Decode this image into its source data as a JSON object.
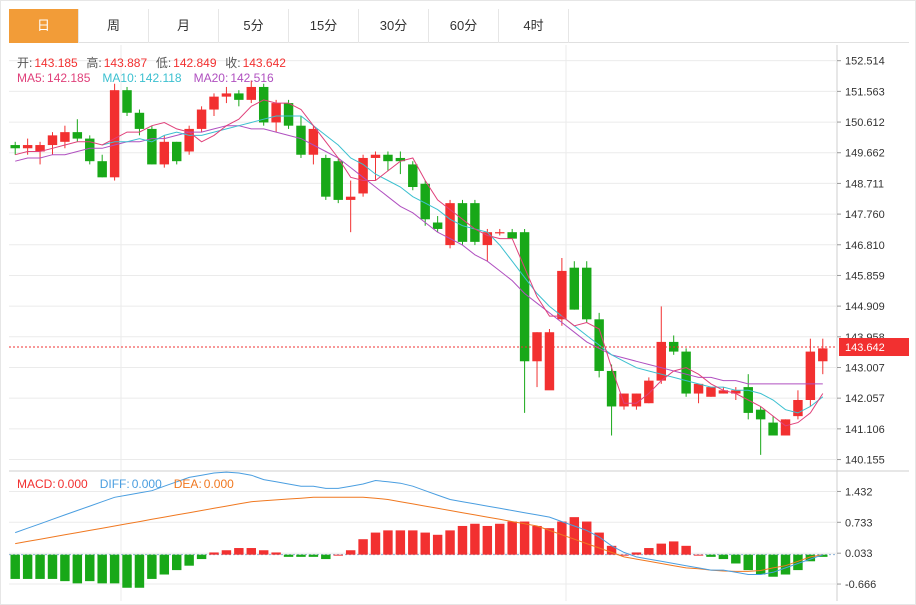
{
  "tabs": [
    "日",
    "周",
    "月",
    "5分",
    "15分",
    "30分",
    "60分",
    "4时"
  ],
  "active_tab": 0,
  "ohlc_legend": {
    "open_label": "开:",
    "open": "143.185",
    "high_label": "高:",
    "high": "143.887",
    "low_label": "低:",
    "low": "142.849",
    "close_label": "收:",
    "close": "143.642"
  },
  "ma_legend": {
    "ma5_label": "MA5:",
    "ma5": "142.185",
    "ma10_label": "MA10:",
    "ma10": "142.118",
    "ma20_label": "MA20:",
    "ma20": "142.516"
  },
  "macd_legend": {
    "macd_label": "MACD:",
    "macd": "0.000",
    "diff_label": "DIFF:",
    "diff": "0.000",
    "dea_label": "DEA:",
    "dea": "0.000"
  },
  "price_badge": "143.642",
  "colors": {
    "up": "#f23030",
    "down": "#18a818",
    "ma5": "#e0407a",
    "ma10": "#3cc0d0",
    "ma20": "#b050c0",
    "diff": "#4a9ee0",
    "dea": "#f07820",
    "tab_active": "#f29c38",
    "grid": "#ebebeb"
  },
  "chart_data": [
    {
      "type": "candlestick",
      "ylim": [
        139.8,
        153.0
      ],
      "y_ticks": [
        "152.514",
        "151.563",
        "150.612",
        "149.662",
        "148.711",
        "147.760",
        "146.810",
        "145.859",
        "144.909",
        "143.958",
        "143.007",
        "142.057",
        "141.106",
        "140.155"
      ],
      "y_tick_values": [
        152.514,
        151.563,
        150.612,
        149.662,
        148.711,
        147.76,
        146.81,
        145.859,
        144.909,
        143.958,
        143.007,
        142.057,
        141.106,
        140.155
      ],
      "last_price": 143.642,
      "ohlc": [
        [
          149.9,
          150.0,
          149.6,
          149.8
        ],
        [
          149.8,
          150.1,
          149.6,
          149.9
        ],
        [
          149.7,
          150.0,
          149.3,
          149.9
        ],
        [
          149.9,
          150.3,
          149.6,
          150.2
        ],
        [
          150.0,
          150.5,
          149.8,
          150.3
        ],
        [
          150.3,
          150.7,
          150.0,
          150.1
        ],
        [
          150.1,
          150.2,
          149.3,
          149.4
        ],
        [
          149.4,
          149.6,
          148.9,
          148.9
        ],
        [
          148.9,
          151.8,
          148.8,
          151.6
        ],
        [
          151.6,
          151.7,
          150.8,
          150.9
        ],
        [
          150.9,
          151.0,
          150.2,
          150.4
        ],
        [
          150.4,
          150.5,
          149.3,
          149.3
        ],
        [
          149.3,
          150.2,
          149.2,
          150.0
        ],
        [
          150.0,
          150.0,
          149.3,
          149.4
        ],
        [
          149.7,
          150.5,
          149.6,
          150.4
        ],
        [
          150.4,
          151.1,
          150.3,
          151.0
        ],
        [
          151.0,
          151.5,
          150.8,
          151.4
        ],
        [
          151.4,
          151.7,
          151.2,
          151.5
        ],
        [
          151.5,
          151.6,
          151.1,
          151.3
        ],
        [
          151.3,
          151.9,
          151.2,
          151.7
        ],
        [
          151.7,
          151.8,
          150.5,
          150.6
        ],
        [
          150.6,
          151.3,
          150.3,
          151.2
        ],
        [
          151.2,
          151.3,
          150.4,
          150.5
        ],
        [
          150.5,
          150.8,
          149.5,
          149.6
        ],
        [
          149.6,
          150.5,
          149.3,
          150.4
        ],
        [
          149.5,
          149.6,
          148.2,
          148.3
        ],
        [
          149.4,
          149.5,
          148.1,
          148.2
        ],
        [
          148.2,
          148.8,
          147.2,
          148.3
        ],
        [
          148.4,
          149.6,
          148.3,
          149.5
        ],
        [
          149.5,
          149.7,
          148.8,
          149.6
        ],
        [
          149.6,
          149.7,
          149.1,
          149.4
        ],
        [
          149.5,
          149.7,
          149.0,
          149.4
        ],
        [
          149.3,
          149.4,
          148.5,
          148.6
        ],
        [
          148.7,
          148.8,
          147.4,
          147.6
        ],
        [
          147.5,
          147.7,
          147.2,
          147.3
        ],
        [
          146.8,
          148.2,
          146.7,
          148.1
        ],
        [
          148.1,
          148.2,
          146.8,
          146.9
        ],
        [
          148.1,
          148.2,
          146.8,
          146.9
        ],
        [
          146.8,
          147.3,
          146.3,
          147.2
        ],
        [
          147.2,
          147.3,
          147.1,
          147.2
        ],
        [
          147.2,
          147.3,
          147.0,
          147.0
        ],
        [
          147.2,
          147.3,
          141.6,
          143.2
        ],
        [
          143.2,
          144.1,
          142.4,
          144.1
        ],
        [
          142.3,
          144.2,
          142.4,
          144.1
        ],
        [
          144.5,
          146.4,
          144.3,
          146.0
        ],
        [
          146.1,
          146.3,
          144.8,
          144.8
        ],
        [
          146.1,
          146.3,
          144.4,
          144.5
        ],
        [
          144.5,
          144.7,
          142.7,
          142.9
        ],
        [
          142.9,
          143.1,
          140.9,
          141.8
        ],
        [
          141.8,
          142.2,
          141.7,
          142.2
        ],
        [
          141.8,
          142.2,
          141.7,
          142.2
        ],
        [
          141.9,
          142.7,
          141.9,
          142.6
        ],
        [
          142.6,
          144.9,
          142.5,
          143.8
        ],
        [
          143.8,
          144.0,
          143.4,
          143.5
        ],
        [
          143.5,
          143.6,
          142.1,
          142.2
        ],
        [
          142.2,
          142.5,
          141.9,
          142.5
        ],
        [
          142.1,
          142.4,
          142.1,
          142.4
        ],
        [
          142.2,
          142.4,
          142.2,
          142.3
        ],
        [
          142.2,
          142.4,
          142.0,
          142.3
        ],
        [
          142.4,
          142.8,
          141.4,
          141.6
        ],
        [
          141.7,
          141.8,
          140.3,
          141.4
        ],
        [
          141.3,
          141.5,
          140.9,
          140.9
        ],
        [
          140.9,
          141.4,
          140.9,
          141.4
        ],
        [
          141.5,
          142.3,
          141.4,
          142.0
        ],
        [
          142.0,
          143.9,
          141.8,
          143.5
        ],
        [
          143.2,
          143.9,
          142.8,
          143.6
        ]
      ],
      "ma5": [
        149.6,
        149.7,
        149.7,
        149.8,
        149.9,
        150.0,
        150.0,
        149.9,
        150.1,
        150.3,
        150.3,
        150.5,
        150.6,
        150.4,
        150.3,
        150.0,
        150.2,
        150.5,
        150.7,
        151.1,
        151.3,
        151.2,
        151.2,
        151.0,
        150.5,
        150.0,
        149.5,
        148.9,
        148.8,
        148.8,
        149.1,
        149.4,
        149.5,
        148.8,
        148.2,
        147.9,
        147.6,
        147.3,
        147.1,
        147.0,
        147.0,
        146.1,
        145.2,
        144.6,
        144.6,
        144.3,
        144.4,
        144.2,
        143.0,
        141.9,
        141.9,
        142.2,
        142.6,
        142.9,
        143.0,
        142.8,
        142.5,
        142.3,
        142.2,
        142.0,
        141.8,
        141.5,
        141.2,
        141.3,
        141.6,
        142.2
      ],
      "ma10": [
        null,
        null,
        null,
        null,
        null,
        null,
        null,
        149.9,
        150.0,
        150.0,
        150.1,
        150.0,
        150.2,
        150.3,
        150.2,
        150.2,
        150.3,
        150.4,
        150.5,
        150.6,
        150.7,
        150.8,
        150.8,
        150.8,
        150.5,
        150.2,
        149.9,
        149.5,
        149.3,
        149.0,
        148.8,
        148.6,
        148.3,
        148.1,
        147.9,
        147.6,
        147.4,
        147.3,
        147.2,
        146.8,
        146.3,
        145.8,
        145.3,
        144.9,
        144.6,
        144.3,
        144.0,
        143.7,
        143.4,
        143.2,
        143.0,
        142.9,
        142.8,
        142.7,
        142.6,
        142.5,
        142.4,
        142.4,
        142.3,
        142.3,
        142.2,
        142.0,
        141.7,
        141.6,
        141.8,
        142.1
      ],
      "ma20": [
        149.4,
        149.5,
        149.5,
        149.6,
        149.6,
        149.7,
        149.8,
        149.8,
        149.9,
        150.0,
        150.0,
        150.1,
        150.1,
        150.2,
        150.3,
        150.3,
        150.4,
        150.5,
        150.5,
        150.4,
        150.4,
        150.3,
        150.2,
        150.1,
        149.9,
        149.7,
        149.5,
        149.2,
        148.9,
        148.6,
        148.3,
        148.0,
        147.8,
        147.5,
        147.2,
        147.0,
        146.8,
        146.5,
        146.3,
        146.0,
        145.7,
        145.3,
        145.0,
        144.7,
        144.4,
        144.1,
        143.8,
        143.6,
        143.4,
        143.3,
        143.2,
        143.1,
        143.0,
        142.9,
        142.8,
        142.7,
        142.7,
        142.6,
        142.6,
        142.5,
        142.5,
        142.5,
        142.5,
        142.5,
        142.5,
        142.5
      ]
    },
    {
      "type": "bar+line",
      "name": "MACD",
      "ylim": [
        -1.05,
        1.85
      ],
      "y_ticks": [
        "1.432",
        "0.733",
        "0.033",
        "-0.666"
      ],
      "y_tick_values": [
        1.432,
        0.733,
        0.033,
        -0.666
      ],
      "macd": [
        -0.55,
        -0.55,
        -0.55,
        -0.55,
        -0.6,
        -0.65,
        -0.6,
        -0.65,
        -0.65,
        -0.75,
        -0.75,
        -0.55,
        -0.45,
        -0.35,
        -0.25,
        -0.1,
        0.05,
        0.1,
        0.15,
        0.15,
        0.1,
        0.05,
        -0.05,
        -0.05,
        -0.05,
        -0.1,
        0.0,
        0.1,
        0.35,
        0.5,
        0.55,
        0.55,
        0.55,
        0.5,
        0.45,
        0.55,
        0.65,
        0.7,
        0.65,
        0.7,
        0.75,
        0.75,
        0.65,
        0.6,
        0.75,
        0.85,
        0.75,
        0.5,
        0.2,
        0.0,
        0.05,
        0.15,
        0.25,
        0.3,
        0.2,
        0.0,
        -0.05,
        -0.1,
        -0.2,
        -0.35,
        -0.45,
        -0.5,
        -0.45,
        -0.35,
        -0.15,
        -0.05
      ],
      "diff": [
        0.5,
        0.6,
        0.7,
        0.8,
        0.9,
        1.0,
        1.1,
        1.2,
        1.3,
        1.35,
        1.4,
        1.45,
        1.55,
        1.65,
        1.75,
        1.8,
        1.85,
        1.87,
        1.85,
        1.8,
        1.7,
        1.65,
        1.6,
        1.55,
        1.55,
        1.5,
        1.5,
        1.55,
        1.6,
        1.68,
        1.65,
        1.62,
        1.55,
        1.45,
        1.35,
        1.25,
        1.2,
        1.15,
        1.1,
        1.05,
        1.0,
        0.95,
        0.9,
        0.85,
        0.75,
        0.65,
        0.55,
        0.4,
        0.2,
        0.05,
        -0.05,
        -0.1,
        -0.15,
        -0.2,
        -0.25,
        -0.3,
        -0.35,
        -0.35,
        -0.4,
        -0.45,
        -0.45,
        -0.4,
        -0.3,
        -0.2,
        -0.1,
        0.0
      ],
      "dea": [
        0.25,
        0.3,
        0.35,
        0.4,
        0.45,
        0.5,
        0.55,
        0.6,
        0.65,
        0.7,
        0.75,
        0.8,
        0.85,
        0.9,
        0.95,
        1.0,
        1.05,
        1.1,
        1.15,
        1.2,
        1.22,
        1.24,
        1.26,
        1.28,
        1.3,
        1.3,
        1.3,
        1.3,
        1.3,
        1.28,
        1.25,
        1.2,
        1.15,
        1.1,
        1.05,
        1.0,
        0.95,
        0.9,
        0.85,
        0.8,
        0.75,
        0.7,
        0.65,
        0.55,
        0.45,
        0.35,
        0.25,
        0.15,
        0.05,
        -0.05,
        -0.1,
        -0.15,
        -0.2,
        -0.25,
        -0.3,
        -0.32,
        -0.35,
        -0.37,
        -0.38,
        -0.38,
        -0.36,
        -0.3,
        -0.25,
        -0.15,
        -0.05,
        0.0
      ]
    }
  ]
}
